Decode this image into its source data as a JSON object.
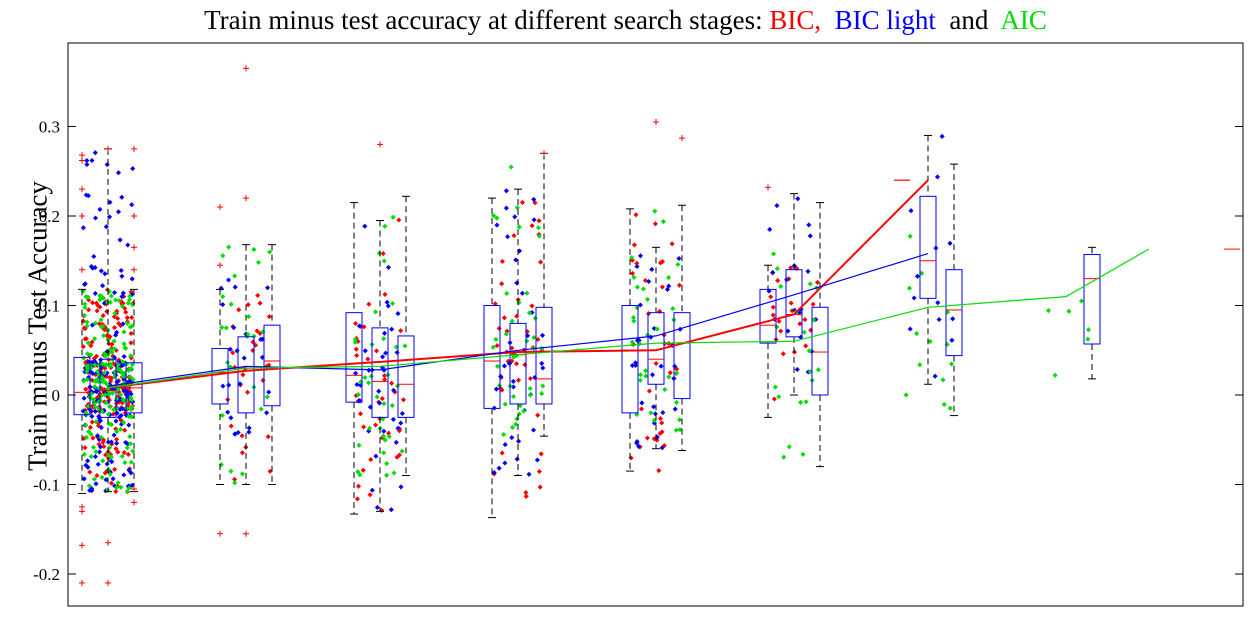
{
  "title": {
    "prefix": "Train minus test accuracy at different search stages: ",
    "bic": "BIC,",
    "sep1": "  ",
    "bic_light": "BIC light",
    "sep2": "  and  ",
    "aic": "AIC"
  },
  "colors": {
    "bic": "#ff0000",
    "bic_light": "#0000ff",
    "aic": "#00dd00",
    "whisker": "#000000"
  },
  "chart_data": {
    "type": "box",
    "title": "Train minus test accuracy at different search stages: BIC, BIC light and AIC",
    "ylabel": "Train minus Test Accuracy",
    "xlabel": "",
    "ylim": [
      -0.24,
      0.39
    ],
    "yticks": [
      -0.2,
      -0.1,
      0,
      0.1,
      0.2,
      0.3
    ],
    "ytick_labels": [
      "-0.2",
      "-0.1",
      "0",
      "0.1",
      "0.2",
      "0.3"
    ],
    "x_tick_labels_shown": false,
    "grid": false,
    "series": [
      {
        "name": "BIC",
        "color": "#ff0000",
        "stages": [
          1,
          2,
          3,
          4,
          5,
          6,
          7
        ],
        "mean": [
          0.008,
          0.027,
          0.037,
          0.048,
          0.05,
          0.09,
          0.24
        ],
        "boxes": [
          {
            "stage": 1,
            "whisker_low": -0.11,
            "q1": -0.022,
            "median": 0.003,
            "q3": 0.042,
            "whisker_high": 0.118,
            "outliers": [
              -0.21,
              -0.168,
              -0.13,
              -0.125,
              0.14,
              0.2,
              0.23,
              0.262,
              0.268
            ]
          },
          {
            "stage": 2,
            "whisker_low": -0.1,
            "q1": -0.01,
            "median": 0.025,
            "q3": 0.052,
            "whisker_high": 0.118,
            "outliers": [
              -0.155,
              0.145,
              0.21
            ]
          },
          {
            "stage": 3,
            "whisker_low": -0.133,
            "q1": -0.008,
            "median": 0.022,
            "q3": 0.092,
            "whisker_high": 0.215,
            "outliers": []
          },
          {
            "stage": 4,
            "whisker_low": -0.137,
            "q1": -0.015,
            "median": 0.038,
            "q3": 0.1,
            "whisker_high": 0.22,
            "outliers": []
          },
          {
            "stage": 5,
            "whisker_low": -0.085,
            "q1": -0.02,
            "median": 0.05,
            "q3": 0.1,
            "whisker_high": 0.208,
            "outliers": []
          },
          {
            "stage": 6,
            "whisker_low": -0.025,
            "q1": 0.058,
            "median": 0.078,
            "q3": 0.118,
            "whisker_high": 0.145,
            "outliers": [
              0.232
            ]
          },
          {
            "stage": 7,
            "whisker_low": 0.24,
            "q1": 0.24,
            "median": 0.24,
            "q3": 0.24,
            "whisker_high": 0.24,
            "outliers": []
          }
        ]
      },
      {
        "name": "BIC light",
        "color": "#0000ff",
        "stages": [
          1,
          2,
          3,
          4,
          5,
          6,
          7
        ],
        "mean": [
          0.01,
          0.032,
          0.028,
          0.05,
          0.066,
          0.112,
          0.158
        ],
        "boxes": [
          {
            "stage": 1,
            "whisker_low": -0.108,
            "q1": -0.025,
            "median": 0.005,
            "q3": 0.04,
            "whisker_high": 0.275,
            "outliers": [
              -0.165,
              -0.21,
              0.275
            ]
          },
          {
            "stage": 2,
            "whisker_low": -0.1,
            "q1": -0.02,
            "median": 0.03,
            "q3": 0.065,
            "whisker_high": 0.168,
            "outliers": [
              -0.155,
              0.22,
              0.365
            ]
          },
          {
            "stage": 3,
            "whisker_low": -0.13,
            "q1": -0.025,
            "median": 0.015,
            "q3": 0.075,
            "whisker_high": 0.195,
            "outliers": [
              0.28
            ]
          },
          {
            "stage": 4,
            "whisker_low": -0.09,
            "q1": -0.01,
            "median": 0.045,
            "q3": 0.08,
            "whisker_high": 0.23,
            "outliers": []
          },
          {
            "stage": 5,
            "whisker_low": -0.06,
            "q1": 0.012,
            "median": 0.04,
            "q3": 0.092,
            "whisker_high": 0.165,
            "outliers": [
              0.305
            ]
          },
          {
            "stage": 6,
            "whisker_low": 0.0,
            "q1": 0.065,
            "median": 0.09,
            "q3": 0.14,
            "whisker_high": 0.225,
            "outliers": []
          },
          {
            "stage": 7,
            "whisker_low": 0.012,
            "q1": 0.108,
            "median": 0.15,
            "q3": 0.222,
            "whisker_high": 0.29,
            "outliers": []
          }
        ]
      },
      {
        "name": "AIC",
        "color": "#00dd00",
        "stages": [
          1,
          2,
          3,
          4,
          5,
          6,
          7,
          8
        ],
        "mean": [
          0.008,
          0.03,
          0.032,
          0.045,
          0.058,
          0.06,
          0.098,
          0.11
        ],
        "extra_point": {
          "stage": 8.6,
          "value": 0.163
        },
        "boxes": [
          {
            "stage": 1,
            "whisker_low": -0.108,
            "q1": -0.02,
            "median": 0.008,
            "q3": 0.036,
            "whisker_high": 0.118,
            "outliers": [
              -0.12,
              -0.105,
              0.14,
              0.165,
              0.2,
              0.275
            ]
          },
          {
            "stage": 2,
            "whisker_low": -0.1,
            "q1": -0.012,
            "median": 0.038,
            "q3": 0.078,
            "whisker_high": 0.168,
            "outliers": []
          },
          {
            "stage": 3,
            "whisker_low": -0.09,
            "q1": -0.025,
            "median": 0.012,
            "q3": 0.066,
            "whisker_high": 0.222,
            "outliers": []
          },
          {
            "stage": 4,
            "whisker_low": -0.046,
            "q1": -0.01,
            "median": 0.018,
            "q3": 0.098,
            "whisker_high": 0.27,
            "outliers": [
              0.27
            ]
          },
          {
            "stage": 5,
            "whisker_low": -0.062,
            "q1": -0.004,
            "median": 0.058,
            "q3": 0.092,
            "whisker_high": 0.212,
            "outliers": [
              0.287
            ]
          },
          {
            "stage": 6,
            "whisker_low": -0.08,
            "q1": 0.0,
            "median": 0.048,
            "q3": 0.098,
            "whisker_high": 0.215,
            "outliers": []
          },
          {
            "stage": 7,
            "whisker_low": -0.023,
            "q1": 0.044,
            "median": 0.095,
            "q3": 0.14,
            "whisker_high": 0.258,
            "outliers": []
          },
          {
            "stage": 8,
            "whisker_low": 0.018,
            "q1": 0.057,
            "median": 0.13,
            "q3": 0.157,
            "whisker_high": 0.165,
            "outliers": []
          }
        ]
      }
    ]
  }
}
